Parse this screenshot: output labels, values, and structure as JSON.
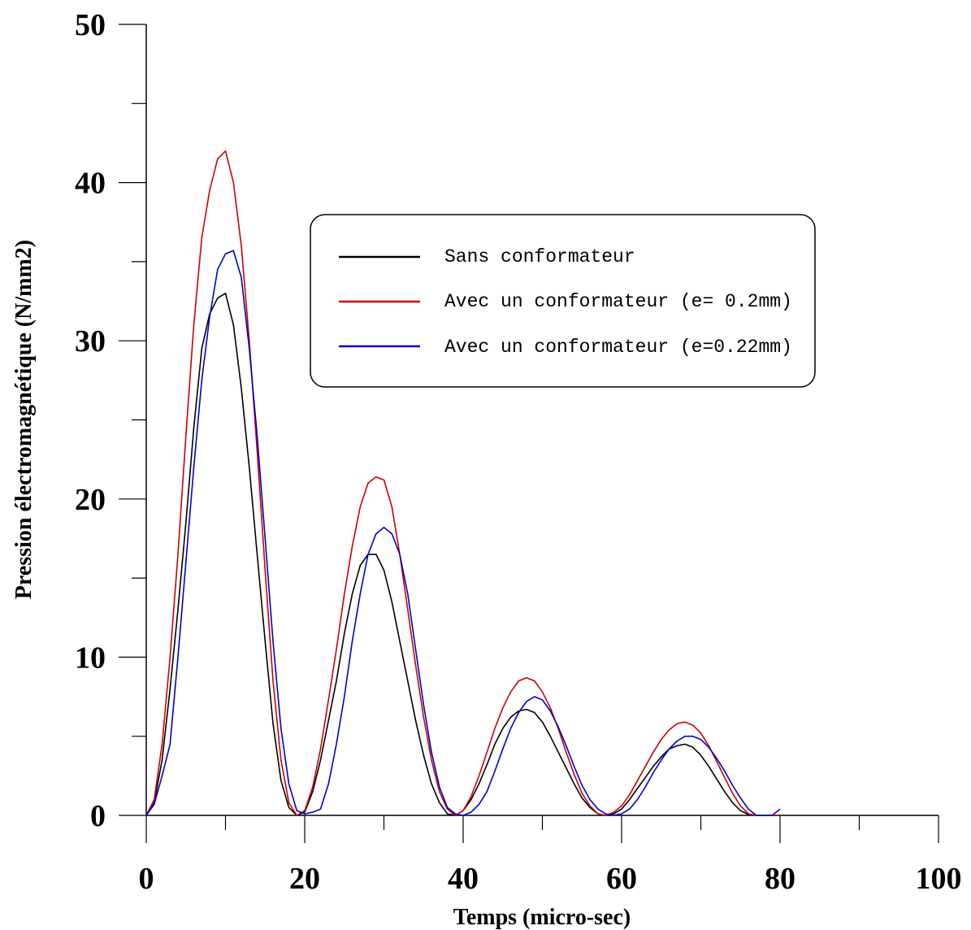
{
  "chart_data": {
    "type": "line",
    "xlabel": "Temps (micro-sec)",
    "ylabel": "Pression électromagnétique (N/mm2)",
    "xlim": [
      0,
      100
    ],
    "ylim": [
      0,
      50
    ],
    "x_ticks": [
      0,
      20,
      40,
      60,
      80,
      100
    ],
    "y_ticks": [
      0,
      10,
      20,
      30,
      40,
      50
    ],
    "x_tick_labels": [
      "0",
      "20",
      "40",
      "60",
      "80",
      "100"
    ],
    "y_tick_labels": [
      "0",
      "10",
      "20",
      "30",
      "40",
      "50"
    ],
    "grid": false,
    "legend_position": "upper-center",
    "series": [
      {
        "name": "Sans conformateur",
        "color": "#000000",
        "x": [
          0,
          1,
          2,
          3,
          4,
          5,
          6,
          7,
          8,
          9,
          10,
          11,
          12,
          13,
          14,
          15,
          16,
          17,
          18,
          19,
          20,
          21,
          22,
          23,
          24,
          25,
          26,
          27,
          28,
          29,
          30,
          31,
          32,
          33,
          34,
          35,
          36,
          37,
          38,
          39,
          40,
          41,
          42,
          43,
          44,
          45,
          46,
          47,
          48,
          49,
          50,
          51,
          52,
          53,
          54,
          55,
          56,
          57,
          58,
          59,
          60,
          61,
          62,
          63,
          64,
          65,
          66,
          67,
          68,
          69,
          70,
          71,
          72,
          73,
          74,
          75,
          76,
          77,
          78,
          79,
          80
        ],
        "y": [
          0,
          0.8,
          3.5,
          8.0,
          13.0,
          18.5,
          24.5,
          29.5,
          31.7,
          32.7,
          33.0,
          31.0,
          27.0,
          22.0,
          16.5,
          11.0,
          5.8,
          2.2,
          0.5,
          0.0,
          0.2,
          1.5,
          3.5,
          6.0,
          8.5,
          11.5,
          14.0,
          15.8,
          16.5,
          16.5,
          15.5,
          13.5,
          11.0,
          8.5,
          6.0,
          3.8,
          2.0,
          0.8,
          0.1,
          0.0,
          0.3,
          1.0,
          2.0,
          3.2,
          4.5,
          5.5,
          6.2,
          6.6,
          6.7,
          6.5,
          5.9,
          5.0,
          4.0,
          3.0,
          2.0,
          1.1,
          0.5,
          0.1,
          0.0,
          0.1,
          0.4,
          1.0,
          1.7,
          2.4,
          3.1,
          3.7,
          4.2,
          4.4,
          4.5,
          4.3,
          3.8,
          3.1,
          2.3,
          1.5,
          0.8,
          0.3,
          0.05,
          0.0,
          0.0,
          0.0,
          0.0
        ]
      },
      {
        "name": "Avec un conformateur (e= 0.2mm)",
        "color": "#cc0000",
        "x": [
          0,
          1,
          2,
          3,
          4,
          5,
          6,
          7,
          8,
          9,
          10,
          11,
          12,
          13,
          14,
          15,
          16,
          17,
          18,
          19,
          20,
          21,
          22,
          23,
          24,
          25,
          26,
          27,
          28,
          29,
          30,
          31,
          32,
          33,
          34,
          35,
          36,
          37,
          38,
          39,
          40,
          41,
          42,
          43,
          44,
          45,
          46,
          47,
          48,
          49,
          50,
          51,
          52,
          53,
          54,
          55,
          56,
          57,
          58,
          59,
          60,
          61,
          62,
          63,
          64,
          65,
          66,
          67,
          68,
          69,
          70,
          71,
          72,
          73,
          74,
          75,
          76,
          77,
          78,
          79,
          80
        ],
        "y": [
          0,
          1.0,
          4.5,
          10.0,
          16.5,
          24.0,
          31.0,
          36.5,
          39.5,
          41.5,
          42.0,
          40.0,
          36.0,
          30.0,
          23.0,
          15.5,
          8.5,
          3.5,
          0.8,
          0.0,
          0.3,
          1.8,
          4.2,
          7.3,
          10.5,
          14.0,
          17.0,
          19.5,
          21.0,
          21.4,
          21.2,
          19.5,
          16.5,
          13.0,
          9.5,
          6.2,
          3.5,
          1.5,
          0.4,
          0.0,
          0.3,
          1.2,
          2.5,
          4.0,
          5.5,
          6.8,
          7.8,
          8.5,
          8.7,
          8.5,
          7.8,
          6.8,
          5.5,
          4.0,
          2.6,
          1.4,
          0.6,
          0.1,
          0.0,
          0.2,
          0.6,
          1.3,
          2.2,
          3.1,
          4.0,
          4.8,
          5.4,
          5.8,
          5.9,
          5.7,
          5.2,
          4.4,
          3.4,
          2.4,
          1.4,
          0.6,
          0.1,
          0.0,
          0.0,
          0.0,
          0.0
        ]
      },
      {
        "name": "Avec un conformateur (e=0.22mm)",
        "color": "#0000cc",
        "x": [
          0,
          1,
          2,
          3,
          4,
          5,
          6,
          7,
          8,
          9,
          10,
          11,
          12,
          13,
          14,
          15,
          16,
          17,
          18,
          19,
          20,
          21,
          22,
          23,
          24,
          25,
          26,
          27,
          28,
          29,
          30,
          31,
          32,
          33,
          34,
          35,
          36,
          37,
          38,
          39,
          40,
          41,
          42,
          43,
          44,
          45,
          46,
          47,
          48,
          49,
          50,
          51,
          52,
          53,
          54,
          55,
          56,
          57,
          58,
          59,
          60,
          61,
          62,
          63,
          64,
          65,
          66,
          67,
          68,
          69,
          70,
          71,
          72,
          73,
          74,
          75,
          76,
          77,
          78,
          79,
          80
        ],
        "y": [
          0,
          0.7,
          2.5,
          4.5,
          10.0,
          16.0,
          22.0,
          27.5,
          31.5,
          34.5,
          35.5,
          35.7,
          34.0,
          29.5,
          24.0,
          17.5,
          11.0,
          5.5,
          2.0,
          0.3,
          0.1,
          0.2,
          0.4,
          2.0,
          4.5,
          7.5,
          11.0,
          14.0,
          16.5,
          17.8,
          18.2,
          17.8,
          16.5,
          14.0,
          10.5,
          7.0,
          4.0,
          1.8,
          0.5,
          0.1,
          0.0,
          0.2,
          0.7,
          1.5,
          2.8,
          4.2,
          5.5,
          6.5,
          7.2,
          7.5,
          7.3,
          6.6,
          5.6,
          4.4,
          3.1,
          1.9,
          1.0,
          0.4,
          0.1,
          0.0,
          0.1,
          0.4,
          1.0,
          1.8,
          2.7,
          3.5,
          4.2,
          4.7,
          5.0,
          5.0,
          4.8,
          4.3,
          3.6,
          2.8,
          1.9,
          1.1,
          0.4,
          0.0,
          0.0,
          0.0,
          0.4
        ]
      }
    ]
  }
}
